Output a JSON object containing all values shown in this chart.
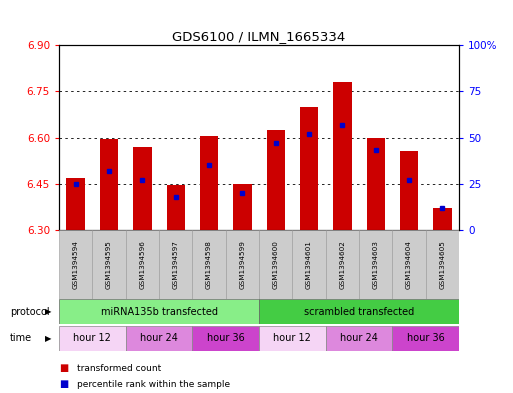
{
  "title": "GDS6100 / ILMN_1665334",
  "samples": [
    "GSM1394594",
    "GSM1394595",
    "GSM1394596",
    "GSM1394597",
    "GSM1394598",
    "GSM1394599",
    "GSM1394600",
    "GSM1394601",
    "GSM1394602",
    "GSM1394603",
    "GSM1394604",
    "GSM1394605"
  ],
  "bar_tops": [
    6.47,
    6.595,
    6.57,
    6.445,
    6.605,
    6.45,
    6.625,
    6.7,
    6.78,
    6.6,
    6.555,
    6.37
  ],
  "bar_bottoms": [
    6.3,
    6.3,
    6.3,
    6.3,
    6.3,
    6.3,
    6.3,
    6.3,
    6.3,
    6.3,
    6.3,
    6.3
  ],
  "percentile_ranks": [
    25,
    32,
    27,
    18,
    35,
    20,
    47,
    52,
    57,
    43,
    27,
    12
  ],
  "ylim_left": [
    6.3,
    6.9
  ],
  "ylim_right": [
    0,
    100
  ],
  "yticks_left": [
    6.3,
    6.45,
    6.6,
    6.75,
    6.9
  ],
  "yticks_right": [
    0,
    25,
    50,
    75,
    100
  ],
  "ytick_labels_right": [
    "0",
    "25",
    "50",
    "75",
    "100%"
  ],
  "bar_color": "#cc0000",
  "percentile_color": "#0000cc",
  "protocol_groups": [
    {
      "label": "miRNA135b transfected",
      "start": 0,
      "end": 6,
      "color": "#88ee88"
    },
    {
      "label": "scrambled transfected",
      "start": 6,
      "end": 12,
      "color": "#44cc44"
    }
  ],
  "time_groups": [
    {
      "label": "hour 12",
      "start": 0,
      "end": 2,
      "color": "#f5d5f5"
    },
    {
      "label": "hour 24",
      "start": 2,
      "end": 4,
      "color": "#dd88dd"
    },
    {
      "label": "hour 36",
      "start": 4,
      "end": 6,
      "color": "#cc44cc"
    },
    {
      "label": "hour 12",
      "start": 6,
      "end": 8,
      "color": "#f5d5f5"
    },
    {
      "label": "hour 24",
      "start": 8,
      "end": 10,
      "color": "#dd88dd"
    },
    {
      "label": "hour 36",
      "start": 10,
      "end": 12,
      "color": "#cc44cc"
    }
  ],
  "legend_items": [
    {
      "label": "transformed count",
      "color": "#cc0000"
    },
    {
      "label": "percentile rank within the sample",
      "color": "#0000cc"
    }
  ],
  "bar_width": 0.55,
  "figsize": [
    5.13,
    3.93
  ],
  "dpi": 100
}
